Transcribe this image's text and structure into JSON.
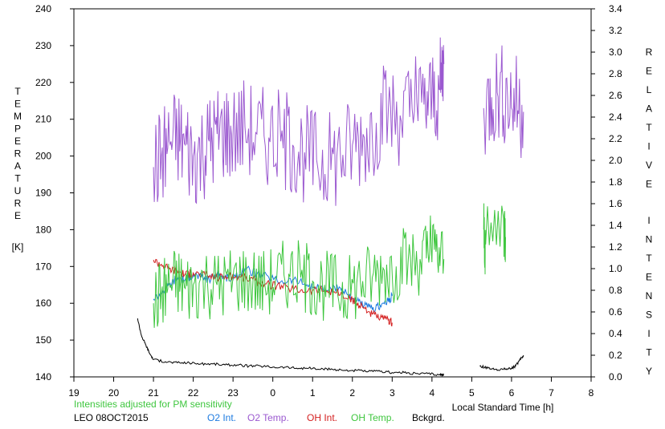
{
  "chart_data": {
    "type": "line",
    "title": "",
    "xlabel": "Local Standard Time [h]",
    "ylabel_left": "TEMPERATURE [K]",
    "ylabel_right": "RELATIVE INTENSITY",
    "left_axis": {
      "ylim": [
        140,
        240
      ],
      "ticks": [
        140,
        150,
        160,
        170,
        180,
        190,
        200,
        210,
        220,
        230,
        240
      ]
    },
    "right_axis": {
      "ylim": [
        0.0,
        3.4
      ],
      "ticks": [
        "0.0",
        "0.2",
        "0.4",
        "0.6",
        "0.8",
        "1.0",
        "1.2",
        "1.4",
        "1.6",
        "1.8",
        "2.0",
        "2.2",
        "2.4",
        "2.6",
        "2.8",
        "3.0",
        "3.2",
        "3.4"
      ]
    },
    "x_axis": {
      "range": [
        19,
        32
      ],
      "tick_labels": [
        "19",
        "20",
        "21",
        "22",
        "23",
        "0",
        "1",
        "2",
        "3",
        "4",
        "5",
        "6",
        "7",
        "8"
      ]
    },
    "grid": false,
    "series": [
      {
        "name": "O2 Int.",
        "axis": "right",
        "color": "#1e7be0",
        "points": [
          [
            21.0,
            0.72
          ],
          [
            21.2,
            0.78
          ],
          [
            21.4,
            0.85
          ],
          [
            21.6,
            0.92
          ],
          [
            21.8,
            0.9
          ],
          [
            22.0,
            0.95
          ],
          [
            22.2,
            0.92
          ],
          [
            22.4,
            0.9
          ],
          [
            22.6,
            0.95
          ],
          [
            22.8,
            0.92
          ],
          [
            23.0,
            0.9
          ],
          [
            23.3,
            1.0
          ],
          [
            23.6,
            0.95
          ],
          [
            23.9,
            0.92
          ],
          [
            24.2,
            0.88
          ],
          [
            24.5,
            0.9
          ],
          [
            24.8,
            0.86
          ],
          [
            25.1,
            0.82
          ],
          [
            25.4,
            0.8
          ],
          [
            25.7,
            0.82
          ],
          [
            25.9,
            0.76
          ],
          [
            26.1,
            0.7
          ],
          [
            26.3,
            0.66
          ],
          [
            26.5,
            0.62
          ],
          [
            26.7,
            0.66
          ],
          [
            26.9,
            0.7
          ],
          [
            27.0,
            0.75
          ]
        ]
      },
      {
        "name": "O2 Temp.",
        "axis": "left",
        "color": "#9b59d0",
        "points": [
          [
            21.0,
            197
          ],
          [
            21.2,
            200
          ],
          [
            21.4,
            204
          ],
          [
            21.6,
            205
          ],
          [
            21.8,
            203
          ],
          [
            22.0,
            200
          ],
          [
            22.2,
            201
          ],
          [
            22.4,
            204
          ],
          [
            22.6,
            206
          ],
          [
            22.8,
            207
          ],
          [
            23.0,
            206
          ],
          [
            23.3,
            208
          ],
          [
            23.6,
            206
          ],
          [
            23.9,
            205
          ],
          [
            24.2,
            204
          ],
          [
            24.5,
            203
          ],
          [
            24.8,
            201
          ],
          [
            25.1,
            199
          ],
          [
            25.4,
            198
          ],
          [
            25.7,
            200
          ],
          [
            26.0,
            203
          ],
          [
            26.3,
            205
          ],
          [
            26.6,
            209
          ],
          [
            26.9,
            212
          ],
          [
            27.2,
            211
          ],
          [
            27.5,
            213
          ],
          [
            27.8,
            214
          ],
          [
            28.0,
            216
          ],
          [
            28.2,
            218
          ],
          [
            28.3,
            225
          ],
          [
            29.3,
            213
          ],
          [
            29.5,
            216
          ],
          [
            29.7,
            218
          ],
          [
            29.9,
            216
          ],
          [
            30.1,
            215
          ],
          [
            30.3,
            212
          ]
        ]
      },
      {
        "name": "OH Int.",
        "axis": "right",
        "color": "#d42020",
        "points": [
          [
            21.0,
            1.08
          ],
          [
            21.2,
            1.04
          ],
          [
            21.4,
            1.0
          ],
          [
            21.6,
            0.98
          ],
          [
            21.8,
            0.95
          ],
          [
            22.0,
            0.96
          ],
          [
            22.3,
            0.94
          ],
          [
            22.6,
            0.92
          ],
          [
            22.9,
            0.93
          ],
          [
            23.2,
            0.92
          ],
          [
            23.5,
            0.9
          ],
          [
            23.8,
            0.86
          ],
          [
            24.1,
            0.84
          ],
          [
            24.4,
            0.82
          ],
          [
            24.7,
            0.8
          ],
          [
            25.0,
            0.8
          ],
          [
            25.3,
            0.8
          ],
          [
            25.6,
            0.78
          ],
          [
            25.9,
            0.72
          ],
          [
            26.1,
            0.68
          ],
          [
            26.3,
            0.64
          ],
          [
            26.5,
            0.58
          ],
          [
            26.7,
            0.54
          ],
          [
            26.9,
            0.52
          ],
          [
            27.0,
            0.5
          ]
        ]
      },
      {
        "name": "OH Temp.",
        "axis": "left",
        "color": "#3ec63e",
        "points": [
          [
            21.0,
            160
          ],
          [
            21.2,
            163
          ],
          [
            21.4,
            165
          ],
          [
            21.6,
            166
          ],
          [
            21.8,
            164
          ],
          [
            22.0,
            165
          ],
          [
            22.3,
            166
          ],
          [
            22.6,
            165
          ],
          [
            22.9,
            166
          ],
          [
            23.2,
            167
          ],
          [
            23.5,
            166
          ],
          [
            23.8,
            165
          ],
          [
            24.1,
            167
          ],
          [
            24.4,
            168
          ],
          [
            24.7,
            167
          ],
          [
            25.0,
            166
          ],
          [
            25.3,
            165
          ],
          [
            25.6,
            164
          ],
          [
            25.9,
            163
          ],
          [
            26.2,
            166
          ],
          [
            26.5,
            167
          ],
          [
            26.8,
            169
          ],
          [
            27.1,
            170
          ],
          [
            27.4,
            171
          ],
          [
            27.7,
            172
          ],
          [
            27.9,
            174
          ],
          [
            28.1,
            174
          ],
          [
            28.3,
            172
          ],
          [
            29.3,
            180
          ],
          [
            29.35,
            176
          ],
          [
            29.8,
            183
          ],
          [
            29.85,
            178
          ]
        ]
      },
      {
        "name": "Bckgrd.",
        "axis": "right",
        "color": "#000000",
        "points": [
          [
            20.6,
            0.54
          ],
          [
            20.7,
            0.38
          ],
          [
            20.8,
            0.3
          ],
          [
            20.9,
            0.22
          ],
          [
            21.0,
            0.16
          ],
          [
            21.3,
            0.14
          ],
          [
            21.6,
            0.13
          ],
          [
            21.9,
            0.13
          ],
          [
            22.2,
            0.12
          ],
          [
            22.5,
            0.12
          ],
          [
            22.8,
            0.11
          ],
          [
            23.1,
            0.11
          ],
          [
            23.4,
            0.1
          ],
          [
            23.7,
            0.1
          ],
          [
            24.0,
            0.09
          ],
          [
            24.3,
            0.09
          ],
          [
            24.6,
            0.08
          ],
          [
            24.9,
            0.08
          ],
          [
            25.2,
            0.07
          ],
          [
            25.5,
            0.07
          ],
          [
            25.8,
            0.06
          ],
          [
            26.1,
            0.06
          ],
          [
            26.4,
            0.05
          ],
          [
            26.7,
            0.05
          ],
          [
            27.0,
            0.04
          ],
          [
            27.3,
            0.04
          ],
          [
            27.6,
            0.03
          ],
          [
            27.9,
            0.03
          ],
          [
            28.2,
            0.02
          ],
          [
            28.3,
            0.02
          ],
          [
            29.2,
            0.1
          ],
          [
            29.4,
            0.08
          ],
          [
            29.6,
            0.07
          ],
          [
            29.8,
            0.07
          ],
          [
            30.0,
            0.08
          ],
          [
            30.1,
            0.1
          ],
          [
            30.2,
            0.15
          ],
          [
            30.3,
            0.2
          ]
        ]
      }
    ]
  },
  "footer": {
    "note": "Intensities adjusted for PM sensitivity",
    "station": "LEO 08OCT2015",
    "legend": {
      "o2_int": "O2 Int.",
      "o2_temp": "O2 Temp.",
      "oh_int": "OH Int.",
      "oh_temp": "OH Temp.",
      "bckgrd": "Bckgrd."
    }
  },
  "colors": {
    "note": "#3ec63e",
    "o2_int": "#1e7be0",
    "o2_temp": "#9b59d0",
    "oh_int": "#d42020",
    "oh_temp": "#3ec63e",
    "bckgrd": "#000000"
  }
}
